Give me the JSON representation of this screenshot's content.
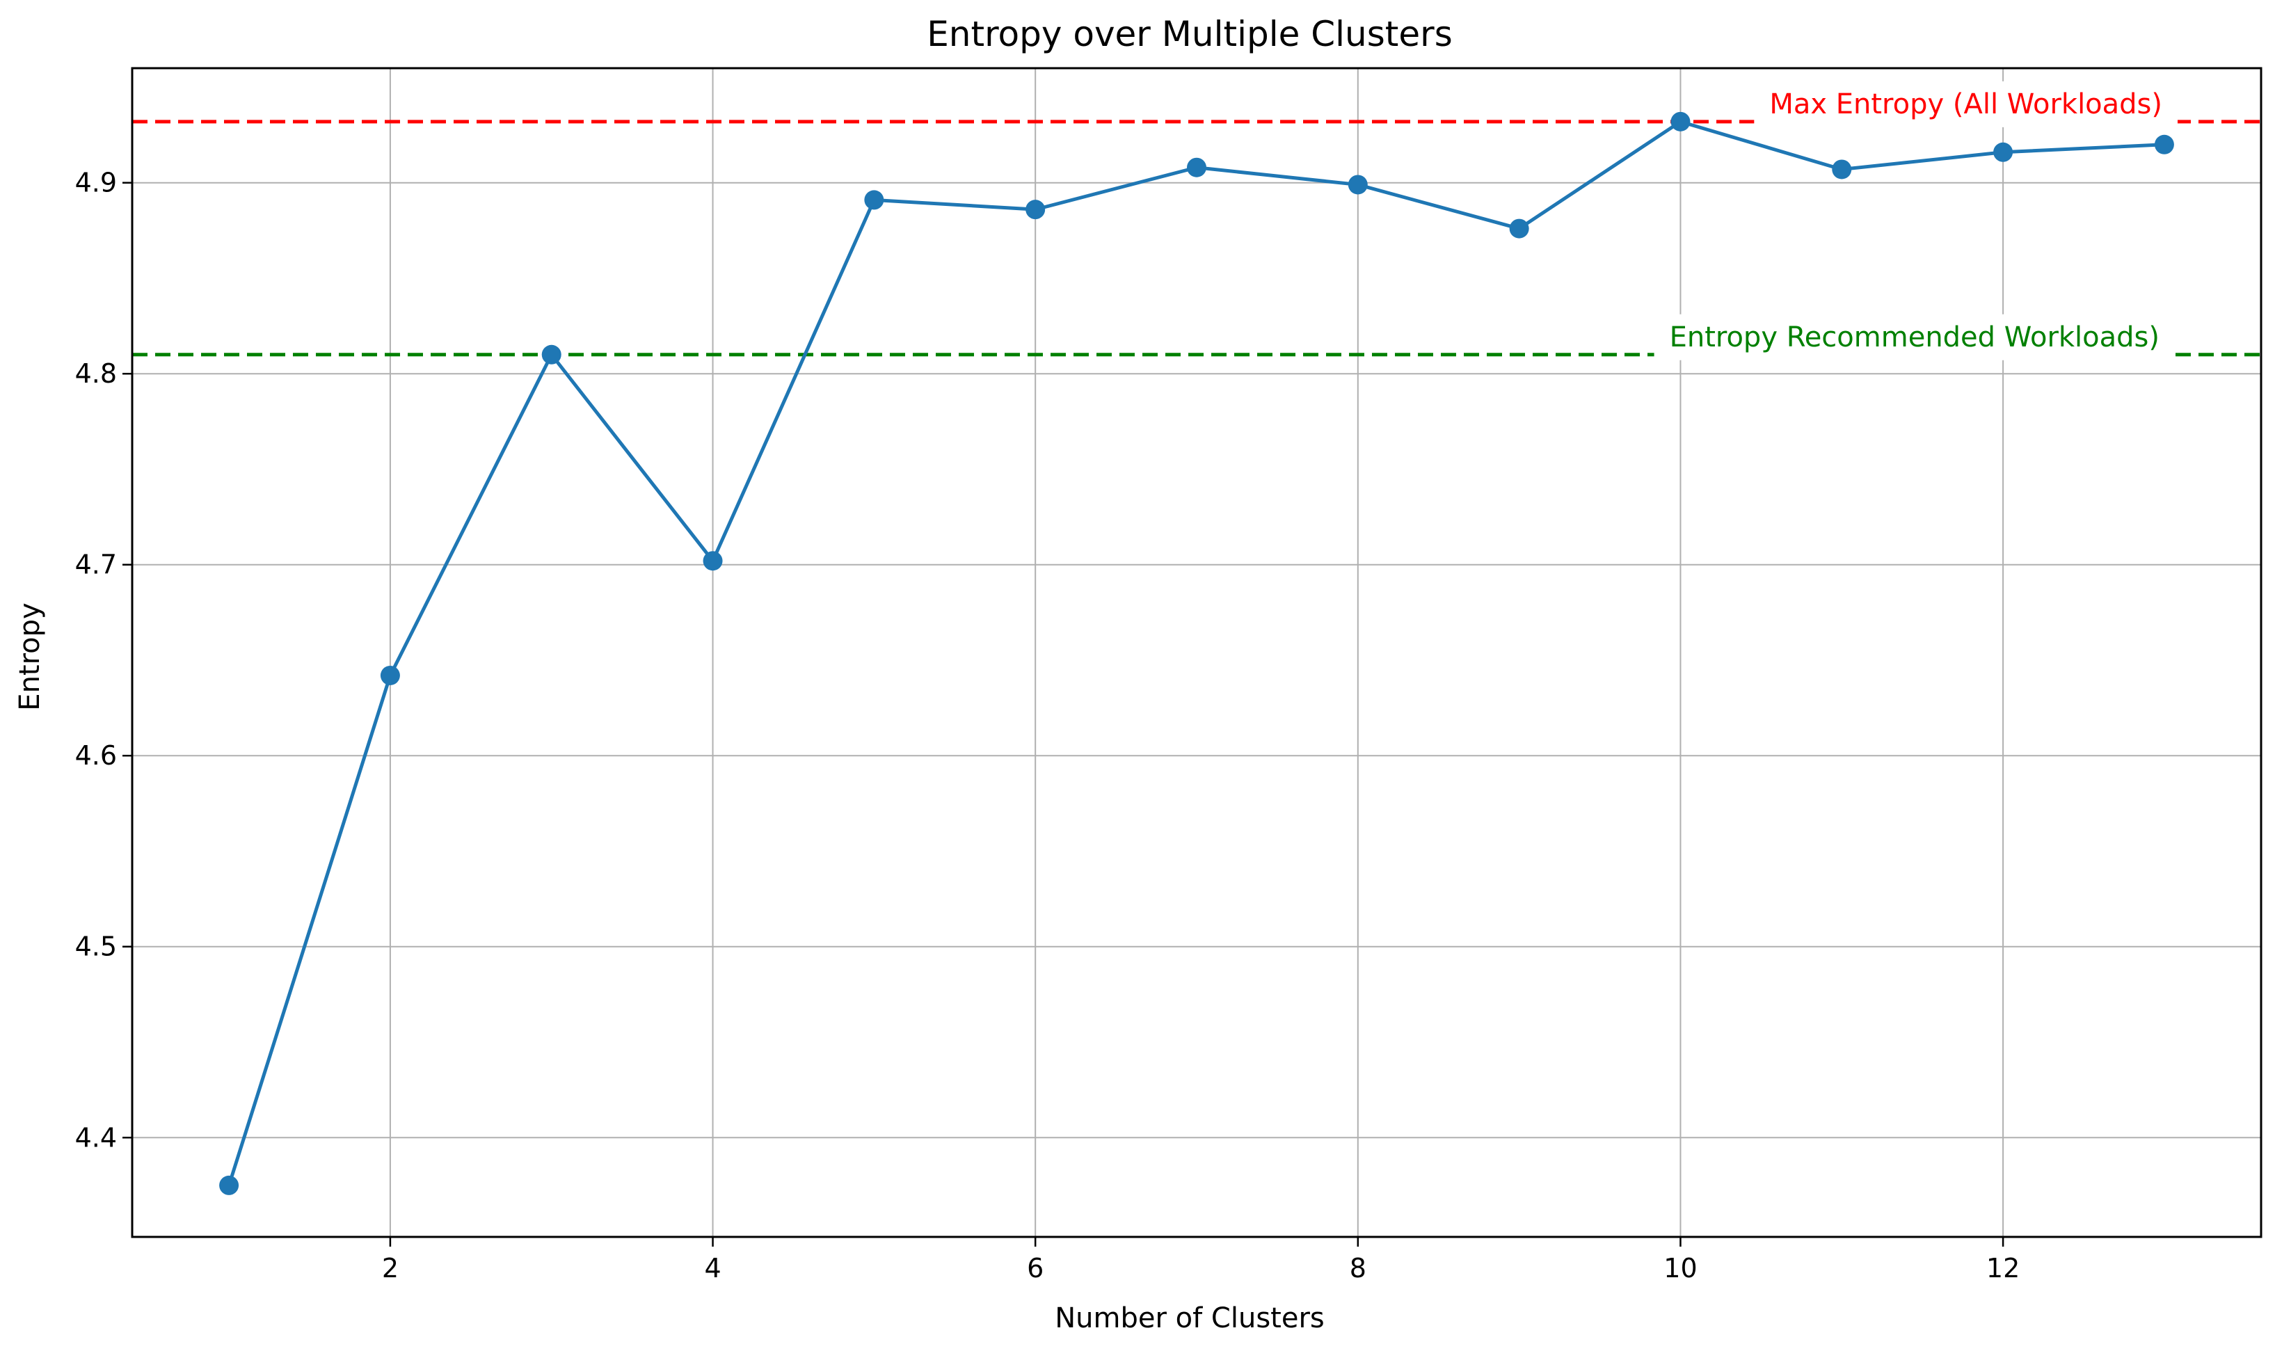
{
  "chart_data": {
    "type": "line",
    "title": "Entropy over Multiple Clusters",
    "xlabel": "Number of Clusters",
    "ylabel": "Entropy",
    "xlim": [
      0.4,
      13.6
    ],
    "ylim": [
      4.348,
      4.96
    ],
    "xticks": [
      "2",
      "4",
      "6",
      "8",
      "10",
      "12"
    ],
    "xtick_values": [
      2,
      4,
      6,
      8,
      10,
      12
    ],
    "yticks": [
      "4.4",
      "4.5",
      "4.6",
      "4.7",
      "4.8",
      "4.9"
    ],
    "ytick_values": [
      4.4,
      4.5,
      4.6,
      4.7,
      4.8,
      4.9
    ],
    "grid": true,
    "series": [
      {
        "color": "#1f77b4",
        "marker": "circle",
        "x": [
          1,
          2,
          3,
          4,
          5,
          6,
          7,
          8,
          9,
          10,
          11,
          12,
          13
        ],
        "y": [
          4.375,
          4.642,
          4.81,
          4.702,
          4.891,
          4.886,
          4.908,
          4.899,
          4.876,
          4.932,
          4.907,
          4.916,
          4.92
        ]
      }
    ],
    "reference_lines": [
      {
        "label": "Max Entropy (All Workloads)",
        "y": 4.932,
        "color": "#ff0000",
        "style": "dashed"
      },
      {
        "label": "Entropy Recommended Workloads)",
        "y": 4.81,
        "color": "#008000",
        "style": "dashed"
      }
    ]
  }
}
